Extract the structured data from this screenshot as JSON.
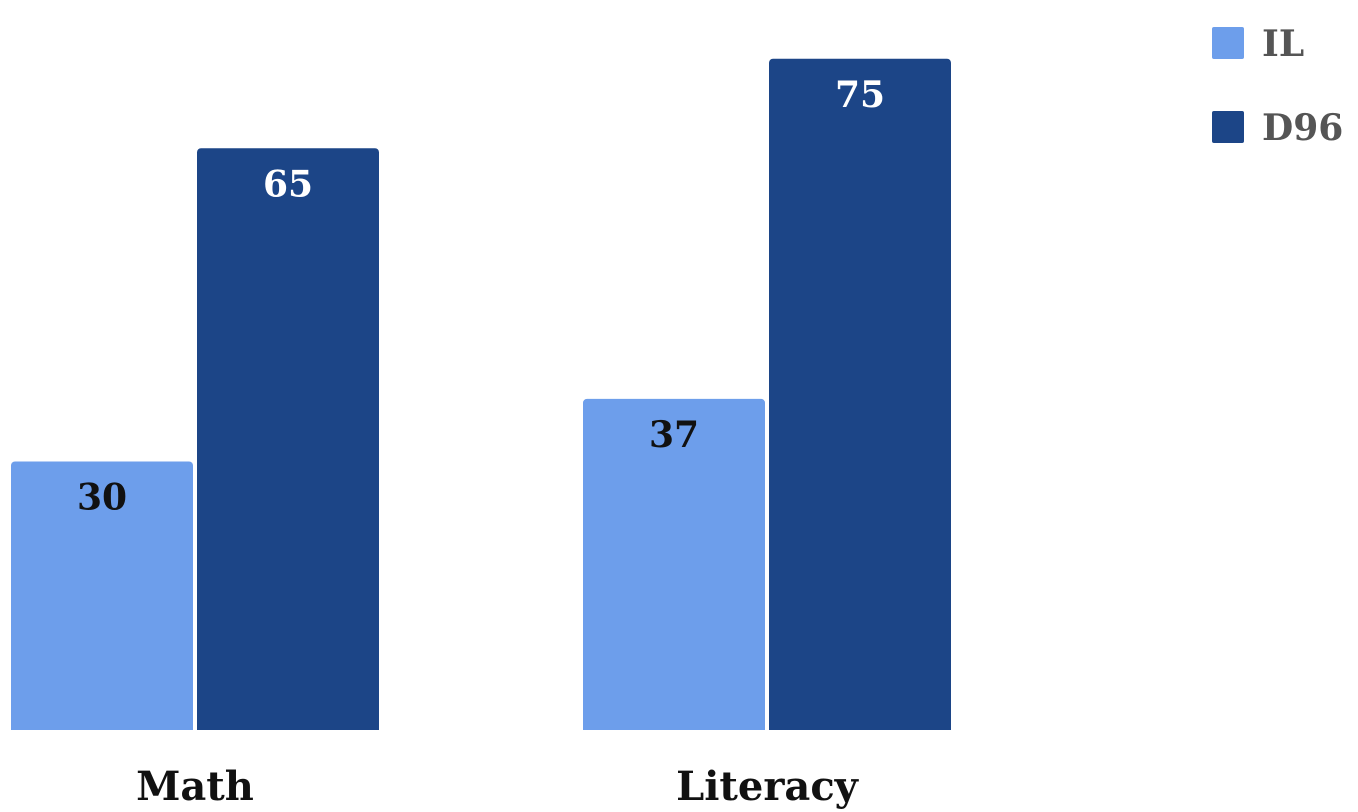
{
  "chart_data": {
    "type": "bar",
    "categories": [
      "Math",
      "Literacy"
    ],
    "series": [
      {
        "name": "IL",
        "values": [
          30,
          37
        ],
        "color": "#6d9eeb"
      },
      {
        "name": "D96",
        "values": [
          65,
          75
        ],
        "color": "#1c4587"
      }
    ],
    "value_label_colors": {
      "IL": "#111111",
      "D96": "#ffffff"
    },
    "title": "",
    "xlabel": "",
    "ylabel": "",
    "ylim": [
      0,
      80
    ],
    "grid": false,
    "legend": "top-right"
  }
}
